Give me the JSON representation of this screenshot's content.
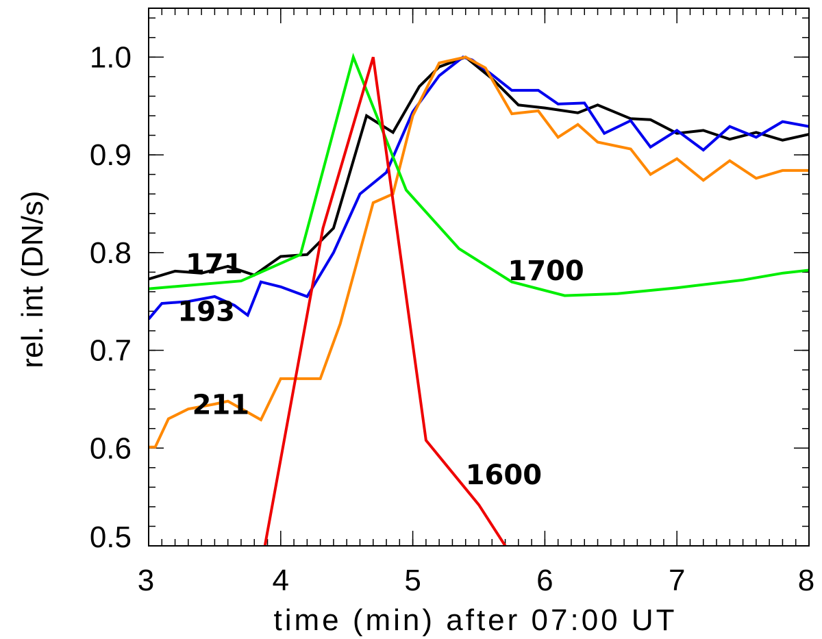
{
  "chart_data": {
    "type": "line",
    "title": "",
    "xlabel": "time (min) after 07:00 UT",
    "ylabel": "rel. int (DN/s)",
    "xlim": [
      3,
      8
    ],
    "ylim": [
      0.5,
      1.05
    ],
    "x_ticks": [
      3,
      4,
      5,
      6,
      7,
      8
    ],
    "x_tick_labels": [
      "3",
      "4",
      "5",
      "6",
      "7",
      "8"
    ],
    "y_ticks": [
      0.5,
      0.6,
      0.7,
      0.8,
      0.9,
      1.0
    ],
    "y_tick_labels": [
      "0.5",
      "0.6",
      "0.7",
      "0.8",
      "0.9",
      "1.0"
    ],
    "x_minor_step": 0.1,
    "y_minor_step": 0.02,
    "grid": false,
    "series": [
      {
        "name": "171",
        "color": "#000000",
        "x": [
          3.0,
          3.2,
          3.4,
          3.6,
          3.8,
          4.0,
          4.2,
          4.4,
          4.65,
          4.85,
          5.05,
          5.2,
          5.4,
          5.6,
          5.8,
          6.0,
          6.25,
          6.4,
          6.65,
          6.8,
          7.0,
          7.2,
          7.4,
          7.6,
          7.8,
          8.0
        ],
        "values": [
          0.773,
          0.781,
          0.779,
          0.786,
          0.777,
          0.796,
          0.798,
          0.825,
          0.94,
          0.923,
          0.97,
          0.99,
          1.0,
          0.978,
          0.951,
          0.948,
          0.943,
          0.951,
          0.937,
          0.936,
          0.922,
          0.925,
          0.916,
          0.923,
          0.915,
          0.921
        ]
      },
      {
        "name": "193",
        "color": "#0000ee",
        "x": [
          3.0,
          3.1,
          3.3,
          3.5,
          3.65,
          3.75,
          3.85,
          4.0,
          4.2,
          4.4,
          4.6,
          4.8,
          5.0,
          5.2,
          5.38,
          5.45,
          5.6,
          5.75,
          5.95,
          6.1,
          6.3,
          6.45,
          6.65,
          6.8,
          7.0,
          7.2,
          7.4,
          7.6,
          7.8,
          8.0
        ],
        "values": [
          0.732,
          0.748,
          0.75,
          0.755,
          0.746,
          0.736,
          0.77,
          0.765,
          0.755,
          0.8,
          0.86,
          0.882,
          0.944,
          0.981,
          1.0,
          0.997,
          0.982,
          0.966,
          0.966,
          0.952,
          0.953,
          0.922,
          0.935,
          0.908,
          0.925,
          0.905,
          0.929,
          0.918,
          0.934,
          0.929
        ]
      },
      {
        "name": "211",
        "color": "#ff8800",
        "x": [
          3.0,
          3.05,
          3.15,
          3.3,
          3.5,
          3.6,
          3.85,
          4.0,
          4.15,
          4.3,
          4.45,
          4.7,
          4.85,
          5.0,
          5.2,
          5.4,
          5.55,
          5.75,
          5.95,
          6.1,
          6.25,
          6.4,
          6.65,
          6.8,
          7.0,
          7.2,
          7.4,
          7.6,
          7.8,
          8.0
        ],
        "values": [
          0.601,
          0.601,
          0.63,
          0.64,
          0.645,
          0.648,
          0.629,
          0.671,
          0.671,
          0.671,
          0.727,
          0.851,
          0.86,
          0.94,
          0.994,
          1.0,
          0.989,
          0.942,
          0.945,
          0.918,
          0.931,
          0.913,
          0.906,
          0.88,
          0.896,
          0.874,
          0.894,
          0.876,
          0.884,
          0.884
        ]
      },
      {
        "name": "1700",
        "color": "#00ee00",
        "x": [
          3.0,
          3.7,
          4.15,
          4.55,
          4.95,
          5.35,
          5.75,
          6.15,
          6.55,
          7.0,
          7.5,
          7.8,
          8.0
        ],
        "values": [
          0.763,
          0.771,
          0.798,
          1.0,
          0.864,
          0.804,
          0.77,
          0.756,
          0.758,
          0.764,
          0.772,
          0.779,
          0.782
        ]
      },
      {
        "name": "1600",
        "color": "#ee0000",
        "x": [
          3.88,
          4.32,
          4.7,
          5.1,
          5.5,
          5.7
        ],
        "values": [
          0.5,
          0.825,
          1.0,
          0.608,
          0.542,
          0.5
        ]
      }
    ],
    "annotations": [
      {
        "text": "171",
        "x": 3.28,
        "y": 0.779
      },
      {
        "text": "193",
        "x": 3.22,
        "y": 0.73
      },
      {
        "text": "211",
        "x": 3.33,
        "y": 0.635
      },
      {
        "text": "1700",
        "x": 5.72,
        "y": 0.772
      },
      {
        "text": "1600",
        "x": 5.4,
        "y": 0.563
      }
    ]
  }
}
